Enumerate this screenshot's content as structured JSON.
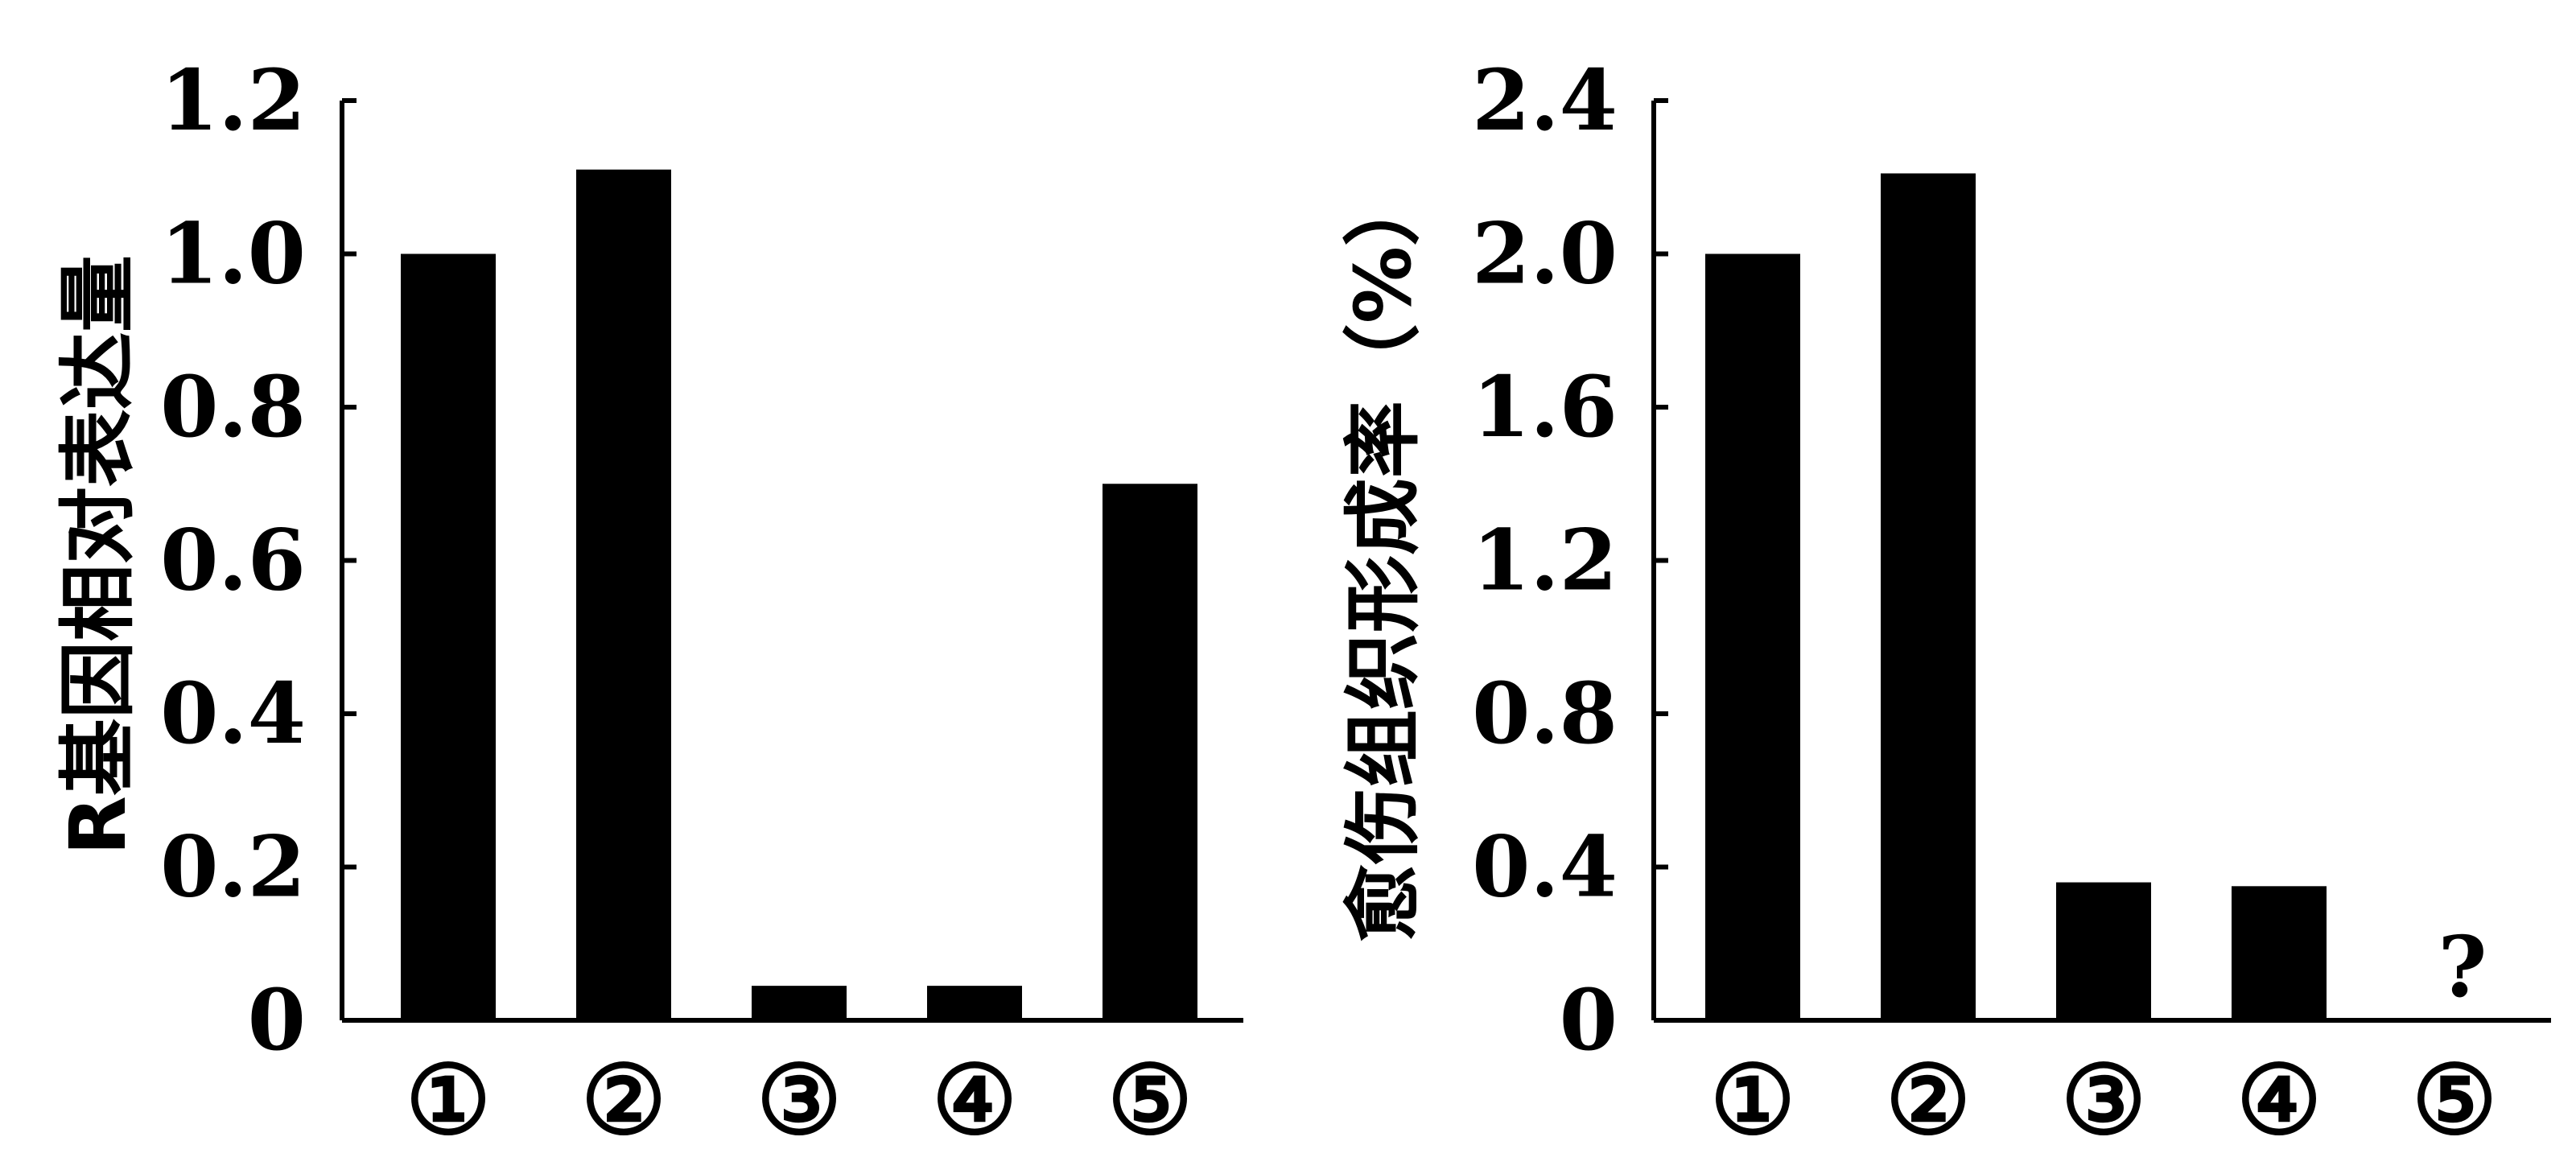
{
  "chart_data": [
    {
      "type": "bar",
      "ylabel": "R基因相对表达量",
      "categories": [
        "①",
        "②",
        "③",
        "④",
        "⑤"
      ],
      "values": [
        1.0,
        1.11,
        0.045,
        0.045,
        0.7
      ],
      "ylim": [
        0,
        1.2
      ],
      "yticks": [
        0,
        0.2,
        0.4,
        0.6,
        0.8,
        1.0,
        1.2
      ],
      "ytick_labels": [
        "0",
        "0.2",
        "0.4",
        "0.6",
        "0.8",
        "1.0",
        "1.2"
      ],
      "grid": false,
      "bar_color": "#000000"
    },
    {
      "type": "bar",
      "ylabel": "愈伤组织形成率（%）",
      "categories": [
        "①",
        "②",
        "③",
        "④",
        "⑤"
      ],
      "values": [
        2.0,
        2.21,
        0.36,
        0.35,
        null
      ],
      "value_annotations": [
        null,
        null,
        null,
        null,
        "?"
      ],
      "ylim": [
        0,
        2.4
      ],
      "yticks": [
        0,
        0.4,
        0.8,
        1.2,
        1.6,
        2.0,
        2.4
      ],
      "ytick_labels": [
        "0",
        "0.4",
        "0.8",
        "1.2",
        "1.6",
        "2.0",
        "2.4"
      ],
      "grid": false,
      "bar_color": "#000000"
    }
  ]
}
